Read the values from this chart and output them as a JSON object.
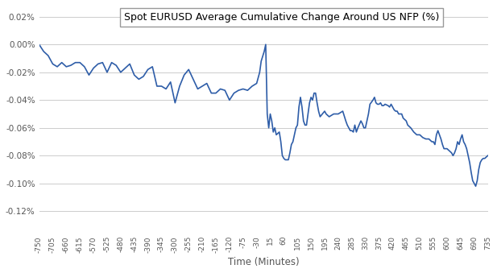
{
  "title": "Spot EURUSD Average Cumulative Change Around US NFP (%)",
  "xlabel": "Time (Minutes)",
  "line_color": "#2E5DA8",
  "background_color": "#FFFFFF",
  "grid_color": "#CCCCCC",
  "x_ticks": [
    -750,
    -705,
    -660,
    -615,
    -570,
    -525,
    -480,
    -435,
    -390,
    -345,
    -300,
    -255,
    -210,
    -165,
    -120,
    -75,
    -30,
    15,
    60,
    105,
    150,
    195,
    240,
    285,
    330,
    375,
    420,
    465,
    510,
    555,
    600,
    645,
    690,
    735
  ],
  "yticks": [
    0.0002,
    0.0,
    -0.0002,
    -0.0004,
    -0.0006,
    -0.0008,
    -0.001,
    -0.0012
  ],
  "ylim": [
    -0.00135,
    0.00028
  ],
  "xlim": [
    -750,
    735
  ],
  "data": [
    [
      -750,
      0.0
    ],
    [
      -735,
      -5e-05
    ],
    [
      -720,
      -8e-05
    ],
    [
      -705,
      -0.00014
    ],
    [
      -690,
      -0.00016
    ],
    [
      -675,
      -0.00013
    ],
    [
      -660,
      -0.00016
    ],
    [
      -645,
      -0.00015
    ],
    [
      -630,
      -0.00013
    ],
    [
      -615,
      -0.00013
    ],
    [
      -600,
      -0.00016
    ],
    [
      -585,
      -0.00022
    ],
    [
      -570,
      -0.00017
    ],
    [
      -555,
      -0.00014
    ],
    [
      -540,
      -0.00013
    ],
    [
      -525,
      -0.0002
    ],
    [
      -510,
      -0.00013
    ],
    [
      -495,
      -0.00015
    ],
    [
      -480,
      -0.0002
    ],
    [
      -465,
      -0.00017
    ],
    [
      -450,
      -0.00014
    ],
    [
      -435,
      -0.00022
    ],
    [
      -420,
      -0.00025
    ],
    [
      -405,
      -0.00023
    ],
    [
      -390,
      -0.00018
    ],
    [
      -375,
      -0.00016
    ],
    [
      -360,
      -0.0003
    ],
    [
      -345,
      -0.0003
    ],
    [
      -330,
      -0.00032
    ],
    [
      -315,
      -0.00027
    ],
    [
      -300,
      -0.00042
    ],
    [
      -285,
      -0.0003
    ],
    [
      -270,
      -0.00022
    ],
    [
      -255,
      -0.00018
    ],
    [
      -240,
      -0.00025
    ],
    [
      -225,
      -0.00032
    ],
    [
      -210,
      -0.0003
    ],
    [
      -195,
      -0.00028
    ],
    [
      -180,
      -0.00035
    ],
    [
      -165,
      -0.00035
    ],
    [
      -150,
      -0.00032
    ],
    [
      -135,
      -0.00033
    ],
    [
      -120,
      -0.0004
    ],
    [
      -105,
      -0.00035
    ],
    [
      -90,
      -0.00033
    ],
    [
      -75,
      -0.00032
    ],
    [
      -60,
      -0.00033
    ],
    [
      -45,
      -0.0003
    ],
    [
      -30,
      -0.00028
    ],
    [
      -20,
      -0.0002
    ],
    [
      -15,
      -0.00012
    ],
    [
      -5,
      -5e-05
    ],
    [
      0,
      0.0
    ],
    [
      5,
      -0.0005
    ],
    [
      10,
      -0.0006
    ],
    [
      15,
      -0.0005
    ],
    [
      20,
      -0.00055
    ],
    [
      25,
      -0.00063
    ],
    [
      30,
      -0.0006
    ],
    [
      35,
      -0.00065
    ],
    [
      45,
      -0.00063
    ],
    [
      50,
      -0.0007
    ],
    [
      55,
      -0.0008
    ],
    [
      60,
      -0.00082
    ],
    [
      65,
      -0.00083
    ],
    [
      70,
      -0.00083
    ],
    [
      75,
      -0.00083
    ],
    [
      80,
      -0.00078
    ],
    [
      85,
      -0.00072
    ],
    [
      90,
      -0.0007
    ],
    [
      95,
      -0.00065
    ],
    [
      100,
      -0.0006
    ],
    [
      105,
      -0.00058
    ],
    [
      110,
      -0.00045
    ],
    [
      115,
      -0.00038
    ],
    [
      120,
      -0.00045
    ],
    [
      125,
      -0.00055
    ],
    [
      130,
      -0.00058
    ],
    [
      135,
      -0.00058
    ],
    [
      140,
      -0.0005
    ],
    [
      145,
      -0.00042
    ],
    [
      150,
      -0.00038
    ],
    [
      155,
      -0.0004
    ],
    [
      160,
      -0.00035
    ],
    [
      165,
      -0.00035
    ],
    [
      170,
      -0.00042
    ],
    [
      175,
      -0.00048
    ],
    [
      180,
      -0.00052
    ],
    [
      195,
      -0.00048
    ],
    [
      200,
      -0.0005
    ],
    [
      210,
      -0.00052
    ],
    [
      225,
      -0.0005
    ],
    [
      240,
      -0.0005
    ],
    [
      255,
      -0.00048
    ],
    [
      265,
      -0.00055
    ],
    [
      270,
      -0.00058
    ],
    [
      280,
      -0.00062
    ],
    [
      285,
      -0.00062
    ],
    [
      290,
      -0.00063
    ],
    [
      295,
      -0.00058
    ],
    [
      300,
      -0.00063
    ],
    [
      305,
      -0.0006
    ],
    [
      315,
      -0.00055
    ],
    [
      320,
      -0.00057
    ],
    [
      325,
      -0.0006
    ],
    [
      330,
      -0.0006
    ],
    [
      335,
      -0.00055
    ],
    [
      340,
      -0.0005
    ],
    [
      345,
      -0.00043
    ],
    [
      355,
      -0.0004
    ],
    [
      360,
      -0.00038
    ],
    [
      365,
      -0.00042
    ],
    [
      370,
      -0.00043
    ],
    [
      375,
      -0.00043
    ],
    [
      380,
      -0.00042
    ],
    [
      385,
      -0.00044
    ],
    [
      390,
      -0.00044
    ],
    [
      395,
      -0.00043
    ],
    [
      405,
      -0.00044
    ],
    [
      410,
      -0.00045
    ],
    [
      415,
      -0.00043
    ],
    [
      420,
      -0.00045
    ],
    [
      425,
      -0.00047
    ],
    [
      430,
      -0.00048
    ],
    [
      435,
      -0.00048
    ],
    [
      440,
      -0.0005
    ],
    [
      450,
      -0.0005
    ],
    [
      455,
      -0.00053
    ],
    [
      465,
      -0.00055
    ],
    [
      470,
      -0.00058
    ],
    [
      480,
      -0.0006
    ],
    [
      490,
      -0.00063
    ],
    [
      500,
      -0.00065
    ],
    [
      510,
      -0.00065
    ],
    [
      520,
      -0.00067
    ],
    [
      530,
      -0.00068
    ],
    [
      540,
      -0.00068
    ],
    [
      550,
      -0.0007
    ],
    [
      555,
      -0.0007
    ],
    [
      560,
      -0.00072
    ],
    [
      565,
      -0.00065
    ],
    [
      570,
      -0.00062
    ],
    [
      575,
      -0.00065
    ],
    [
      580,
      -0.00068
    ],
    [
      585,
      -0.00072
    ],
    [
      590,
      -0.00075
    ],
    [
      600,
      -0.00075
    ],
    [
      605,
      -0.00076
    ],
    [
      615,
      -0.00078
    ],
    [
      620,
      -0.0008
    ],
    [
      625,
      -0.00078
    ],
    [
      630,
      -0.00075
    ],
    [
      635,
      -0.0007
    ],
    [
      640,
      -0.00072
    ],
    [
      645,
      -0.00068
    ],
    [
      650,
      -0.00065
    ],
    [
      655,
      -0.0007
    ],
    [
      660,
      -0.00072
    ],
    [
      665,
      -0.00075
    ],
    [
      670,
      -0.0008
    ],
    [
      675,
      -0.00085
    ],
    [
      680,
      -0.00092
    ],
    [
      685,
      -0.00098
    ],
    [
      690,
      -0.001
    ],
    [
      695,
      -0.00102
    ],
    [
      700,
      -0.00098
    ],
    [
      705,
      -0.0009
    ],
    [
      710,
      -0.00085
    ],
    [
      715,
      -0.00083
    ],
    [
      720,
      -0.00082
    ],
    [
      725,
      -0.00082
    ],
    [
      730,
      -0.00081
    ],
    [
      735,
      -0.0008
    ]
  ]
}
